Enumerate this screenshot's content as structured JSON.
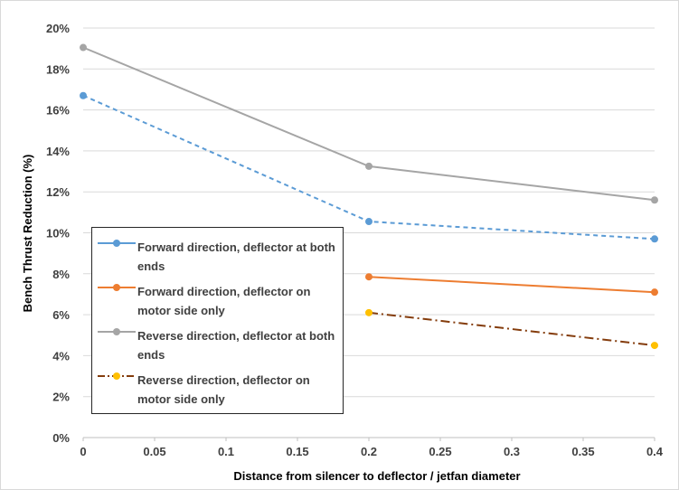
{
  "chart_data": {
    "type": "line",
    "title": "",
    "xlabel": "Distance from silencer to deflector / jetfan diameter",
    "ylabel": "Bench Thrust Reduction (%)",
    "xlim": [
      0,
      0.4
    ],
    "ylim": [
      0,
      20
    ],
    "x_ticks": [
      "0",
      "0.05",
      "0.1",
      "0.15",
      "0.2",
      "0.25",
      "0.3",
      "0.35",
      "0.4"
    ],
    "y_ticks": [
      "0%",
      "2%",
      "4%",
      "6%",
      "8%",
      "10%",
      "12%",
      "14%",
      "16%",
      "18%",
      "20%"
    ],
    "grid": "horizontal",
    "legend_placement": "left",
    "series": [
      {
        "name": "Forward direction, deflector at both ends",
        "color": "#5b9bd5",
        "dash": "dashed",
        "marker_color": "#5b9bd5",
        "x": [
          0,
          0.2,
          0.4
        ],
        "y": [
          16.7,
          10.55,
          9.7
        ]
      },
      {
        "name": "Forward direction, deflector on motor side only",
        "color": "#ed7d31",
        "dash": "solid",
        "marker_color": "#ed7d31",
        "x": [
          0.2,
          0.4
        ],
        "y": [
          7.85,
          7.1
        ]
      },
      {
        "name": "Reverse direction, deflector at both ends",
        "color": "#a5a5a5",
        "dash": "solid",
        "marker_color": "#a5a5a5",
        "x": [
          0,
          0.2,
          0.4
        ],
        "y": [
          19.05,
          13.25,
          11.6
        ]
      },
      {
        "name": "Reverse direction, deflector on motor side only",
        "color": "#843c0c",
        "dash": "dashdot",
        "marker_color": "#ffc000",
        "x": [
          0.2,
          0.4
        ],
        "y": [
          6.1,
          4.5
        ]
      }
    ]
  }
}
